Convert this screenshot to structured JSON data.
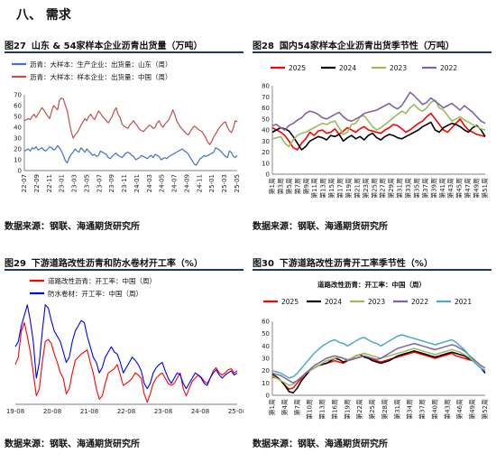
{
  "section_title": "八、  需求",
  "source_text": "数据来源：钢联、海通期货研究所",
  "chart_data": [
    {
      "id": "c1",
      "type": "line",
      "number": "图27",
      "title": "山东 & 54家样本企业沥青出货量（万吨）",
      "legend_position": "top-left",
      "ylim": [
        0,
        70
      ],
      "yticks": [
        0,
        10,
        20,
        30,
        40,
        50,
        60,
        70
      ],
      "x_tick_labels": [
        "22-07",
        "22-09",
        "22-11",
        "23-01",
        "23-03",
        "23-05",
        "23-07",
        "23-09",
        "23-11",
        "24-01",
        "24-03",
        "24-05",
        "24-07",
        "24-09",
        "24-11",
        "25-01",
        "25-03",
        "25-05"
      ],
      "grid": false,
      "series": [
        {
          "name": "沥青：大样本：生产企业：出货量：山东（周）",
          "color": "#4472c4",
          "values": [
            18,
            19,
            20,
            18,
            21,
            20,
            22,
            19,
            20,
            21,
            19,
            18,
            20,
            22,
            21,
            19,
            20,
            23,
            21,
            18,
            14,
            9,
            7,
            12,
            15,
            17,
            20,
            18,
            17,
            21,
            19,
            17,
            20,
            18,
            16,
            14,
            15,
            13,
            14,
            18,
            17,
            16,
            15,
            12,
            11,
            13,
            15,
            16,
            14,
            13,
            12,
            14,
            16,
            17,
            16,
            14,
            13,
            10,
            11,
            12,
            14,
            13,
            12,
            11,
            13,
            14,
            12,
            15,
            14,
            13,
            10,
            11,
            12,
            11,
            13,
            14,
            15,
            16,
            17,
            18,
            19,
            20,
            18,
            17,
            15,
            12,
            9,
            6,
            5,
            8,
            11,
            12,
            14,
            13,
            14,
            15,
            16,
            17,
            21,
            20,
            19,
            17,
            15,
            13,
            12,
            18,
            17,
            13,
            12,
            14
          ]
        },
        {
          "name": "沥青：大样本：样本企业：出货量：中国（周）",
          "color": "#c0504d",
          "values": [
            46,
            47,
            48,
            47,
            50,
            52,
            49,
            52,
            55,
            58,
            56,
            53,
            50,
            48,
            55,
            60,
            58,
            56,
            65,
            67,
            66,
            60,
            55,
            45,
            36,
            30,
            33,
            35,
            38,
            42,
            45,
            48,
            46,
            50,
            52,
            49,
            47,
            51,
            55,
            53,
            50,
            48,
            46,
            44,
            47,
            50,
            55,
            58,
            52,
            49,
            43,
            41,
            40,
            39,
            42,
            44,
            46,
            43,
            41,
            38,
            37,
            36,
            38,
            40,
            42,
            41,
            39,
            40,
            44,
            46,
            42,
            40,
            43,
            45,
            47,
            51,
            56,
            52,
            46,
            43,
            40,
            38,
            36,
            34,
            33,
            36,
            39,
            41,
            40,
            38,
            37,
            36,
            33,
            30,
            26,
            24,
            27,
            31,
            34,
            37,
            40,
            42,
            44,
            45,
            40,
            37,
            35,
            39,
            46,
            45
          ]
        }
      ]
    },
    {
      "id": "c2",
      "type": "line",
      "number": "图28",
      "title": "国内54家样本企业沥青出货季节性（万吨）",
      "legend_position": "top",
      "ylim": [
        0,
        80
      ],
      "yticks": [
        0,
        10,
        20,
        30,
        40,
        50,
        60,
        70,
        80
      ],
      "x_tick_labels": [
        "第1周",
        "第3周",
        "第5周",
        "第7周",
        "第9周",
        "第11周",
        "第13周",
        "第15周",
        "第17周",
        "第19周",
        "第21周",
        "第23周",
        "第25周",
        "第27周",
        "第29周",
        "第31周",
        "第33周",
        "第35周",
        "第37周",
        "第39周",
        "第41周",
        "第43周",
        "第45周",
        "第47周",
        "第49周",
        "第51周"
      ],
      "grid": false,
      "series": [
        {
          "name": "2025",
          "color": "#ff0000",
          "values": [
            42,
            40,
            38,
            35,
            30,
            24,
            22,
            28,
            32,
            38,
            35,
            39,
            40,
            37,
            38,
            41,
            36,
            39,
            42,
            40,
            38,
            41,
            43,
            40,
            39,
            38,
            37,
            40,
            42,
            45,
            44,
            41,
            38,
            40,
            43,
            46,
            48,
            52,
            55,
            50,
            45,
            40,
            38,
            42,
            46,
            50,
            44,
            40,
            38,
            36,
            35,
            34
          ]
        },
        {
          "name": "2024",
          "color": "#000000",
          "values": [
            38,
            40,
            42,
            41,
            39,
            34,
            28,
            22,
            25,
            30,
            32,
            34,
            33,
            31,
            35,
            34,
            36,
            30,
            33,
            35,
            32,
            34,
            31,
            35,
            37,
            33,
            31,
            34,
            36,
            35,
            33,
            32,
            34,
            36,
            38,
            40,
            43,
            45,
            47,
            40,
            38,
            42,
            44,
            46,
            45,
            43,
            40,
            38,
            42,
            44,
            40,
            34
          ]
        },
        {
          "name": "2023",
          "color": "#9bbb59",
          "values": [
            32,
            33,
            34,
            28,
            25,
            31,
            35,
            37,
            38,
            40,
            42,
            44,
            46,
            45,
            47,
            48,
            42,
            36,
            38,
            45,
            46,
            52,
            53,
            48,
            43,
            40,
            42,
            45,
            48,
            51,
            54,
            57,
            55,
            60,
            63,
            59,
            57,
            60,
            65,
            67,
            60,
            58,
            53,
            48,
            50,
            52,
            49,
            47,
            45,
            43,
            41,
            40
          ]
        },
        {
          "name": "2022",
          "color": "#8064a2",
          "values": [
            44,
            45,
            42,
            40,
            44,
            46,
            49,
            51,
            55,
            57,
            56,
            54,
            51,
            50,
            52,
            54,
            56,
            52,
            49,
            48,
            50,
            52,
            55,
            56,
            57,
            58,
            60,
            62,
            64,
            61,
            59,
            62,
            68,
            74,
            71,
            67,
            63,
            65,
            69,
            66,
            63,
            60,
            62,
            64,
            61,
            58,
            62,
            59,
            56,
            52,
            48,
            46
          ]
        }
      ]
    },
    {
      "id": "c3",
      "type": "line",
      "number": "图29",
      "title": "下游道路改性沥青和防水卷材开工率（%）",
      "legend_position": "top",
      "ylim": [
        0,
        100
      ],
      "x_tick_labels": [
        "19-08",
        "20-08",
        "21-08",
        "22-08",
        "23-08",
        "24-08",
        "25-08"
      ],
      "grid": false,
      "series": [
        {
          "name": "道路改性沥青：开工率：中国（周）",
          "color": "#ff0000",
          "values": [
            38,
            45,
            70,
            78,
            65,
            50,
            30,
            8,
            15,
            40,
            60,
            62,
            58,
            48,
            40,
            30,
            25,
            10,
            15,
            30,
            42,
            45,
            48,
            50,
            52,
            40,
            30,
            15,
            5,
            8,
            20,
            30,
            32,
            34,
            38,
            28,
            18,
            20,
            22,
            25,
            30,
            28,
            25,
            10,
            2,
            10,
            20,
            25,
            28,
            30,
            25,
            20,
            18,
            20,
            25,
            30,
            15,
            8,
            15,
            22,
            25,
            28,
            26,
            22,
            20,
            25,
            32,
            35,
            30,
            28,
            30,
            33,
            34,
            30,
            32
          ]
        },
        {
          "name": "防水卷材：开工率：中国（周）",
          "color": "#0000ff",
          "values": [
            55,
            60,
            75,
            85,
            95,
            80,
            60,
            25,
            40,
            70,
            95,
            92,
            80,
            70,
            65,
            60,
            50,
            40,
            45,
            60,
            70,
            75,
            80,
            78,
            65,
            55,
            45,
            40,
            30,
            35,
            45,
            50,
            55,
            50,
            48,
            40,
            30,
            35,
            40,
            45,
            42,
            38,
            32,
            20,
            15,
            20,
            30,
            35,
            38,
            40,
            32,
            25,
            20,
            25,
            30,
            28,
            20,
            15,
            20,
            25,
            30,
            28,
            25,
            20,
            18,
            25,
            30,
            33,
            28,
            25,
            28,
            30,
            32,
            28,
            30
          ]
        }
      ]
    },
    {
      "id": "c4",
      "type": "line",
      "number": "图30",
      "title": "下游道路改性沥青开工率季节性（%）",
      "subtitle": "道路改性沥青：开工率：中国（周）",
      "legend_position": "top",
      "ylim": [
        0,
        60
      ],
      "yticks": [
        0,
        10,
        20,
        30,
        40,
        50,
        60
      ],
      "x_tick_labels": [
        "第1周",
        "第4周",
        "第7周",
        "第10周",
        "第13周",
        "第16周",
        "第19周",
        "第22周",
        "第25周",
        "第28周",
        "第31周",
        "第34周",
        "第37周",
        "第40周",
        "第43周",
        "第46周",
        "第49周",
        "第52周"
      ],
      "grid": false,
      "series": [
        {
          "name": "2025",
          "color": "#ff0000",
          "values": [
            15,
            14,
            12,
            8,
            5,
            6,
            10,
            14,
            18,
            20,
            22,
            24,
            25,
            26,
            27,
            28,
            27,
            26,
            28,
            29,
            30,
            31,
            32,
            30,
            29,
            28,
            27,
            28,
            29,
            30,
            31,
            32,
            33,
            34,
            35,
            34,
            33,
            32,
            31,
            30,
            31,
            32,
            33,
            34,
            32,
            31,
            30,
            29,
            28
          ]
        },
        {
          "name": "2024",
          "color": "#000000",
          "values": [
            17,
            15,
            12,
            8,
            3,
            2,
            6,
            12,
            16,
            20,
            22,
            24,
            25,
            26,
            28,
            30,
            29,
            27,
            28,
            30,
            32,
            33,
            31,
            30,
            28,
            27,
            26,
            27,
            28,
            30,
            32,
            33,
            34,
            35,
            36,
            35,
            34,
            33,
            32,
            31,
            32,
            33,
            34,
            35,
            34,
            33,
            32,
            30,
            28,
            25,
            22,
            18
          ]
        },
        {
          "name": "2023",
          "color": "#9bbb59",
          "values": [
            16,
            14,
            12,
            10,
            8,
            9,
            12,
            15,
            18,
            20,
            22,
            24,
            26,
            28,
            29,
            30,
            31,
            30,
            29,
            30,
            32,
            33,
            34,
            33,
            32,
            31,
            30,
            31,
            32,
            33,
            34,
            35,
            36,
            37,
            38,
            37,
            36,
            35,
            34,
            33,
            34,
            35,
            36,
            37,
            36,
            35,
            33,
            31,
            28,
            25,
            22,
            20
          ]
        },
        {
          "name": "2022",
          "color": "#8064a2",
          "values": [
            18,
            17,
            16,
            14,
            12,
            10,
            12,
            15,
            18,
            21,
            24,
            26,
            28,
            30,
            31,
            32,
            31,
            30,
            28,
            29,
            30,
            31,
            32,
            31,
            30,
            29,
            30,
            32,
            34,
            36,
            38,
            39,
            40,
            41,
            42,
            41,
            40,
            39,
            38,
            37,
            38,
            39,
            40,
            41,
            40,
            38,
            36,
            33,
            30,
            27,
            24,
            22
          ]
        },
        {
          "name": "2021",
          "color": "#4bacc6",
          "values": [
            20,
            19,
            18,
            16,
            14,
            15,
            18,
            22,
            26,
            30,
            34,
            37,
            40,
            42,
            44,
            45,
            43,
            42,
            40,
            42,
            44,
            46,
            47,
            45,
            43,
            42,
            40,
            42,
            44,
            46,
            48,
            49,
            48,
            47,
            46,
            45,
            44,
            43,
            42,
            41,
            42,
            43,
            44,
            45,
            43,
            40,
            37,
            33,
            29,
            25,
            22,
            20
          ]
        }
      ]
    }
  ]
}
